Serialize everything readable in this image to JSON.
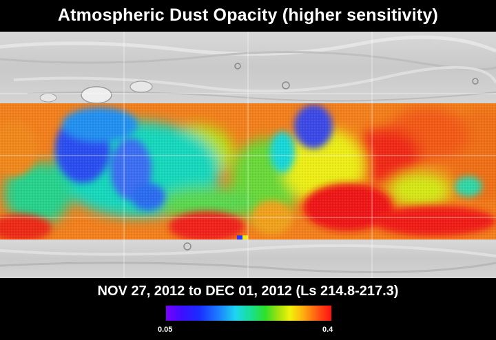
{
  "title": "Atmospheric Dust Opacity (higher sensitivity)",
  "date_range": "NOV 27, 2012 to DEC 01, 2012 (Ls 214.8-217.3)",
  "colorbar": {
    "min_label": "0.05",
    "max_label": "0.4",
    "colors": [
      "#7a00ff",
      "#1a2cff",
      "#1dd6f0",
      "#2ee02a",
      "#f2f20a",
      "#ff5414",
      "#ff1010"
    ]
  }
}
